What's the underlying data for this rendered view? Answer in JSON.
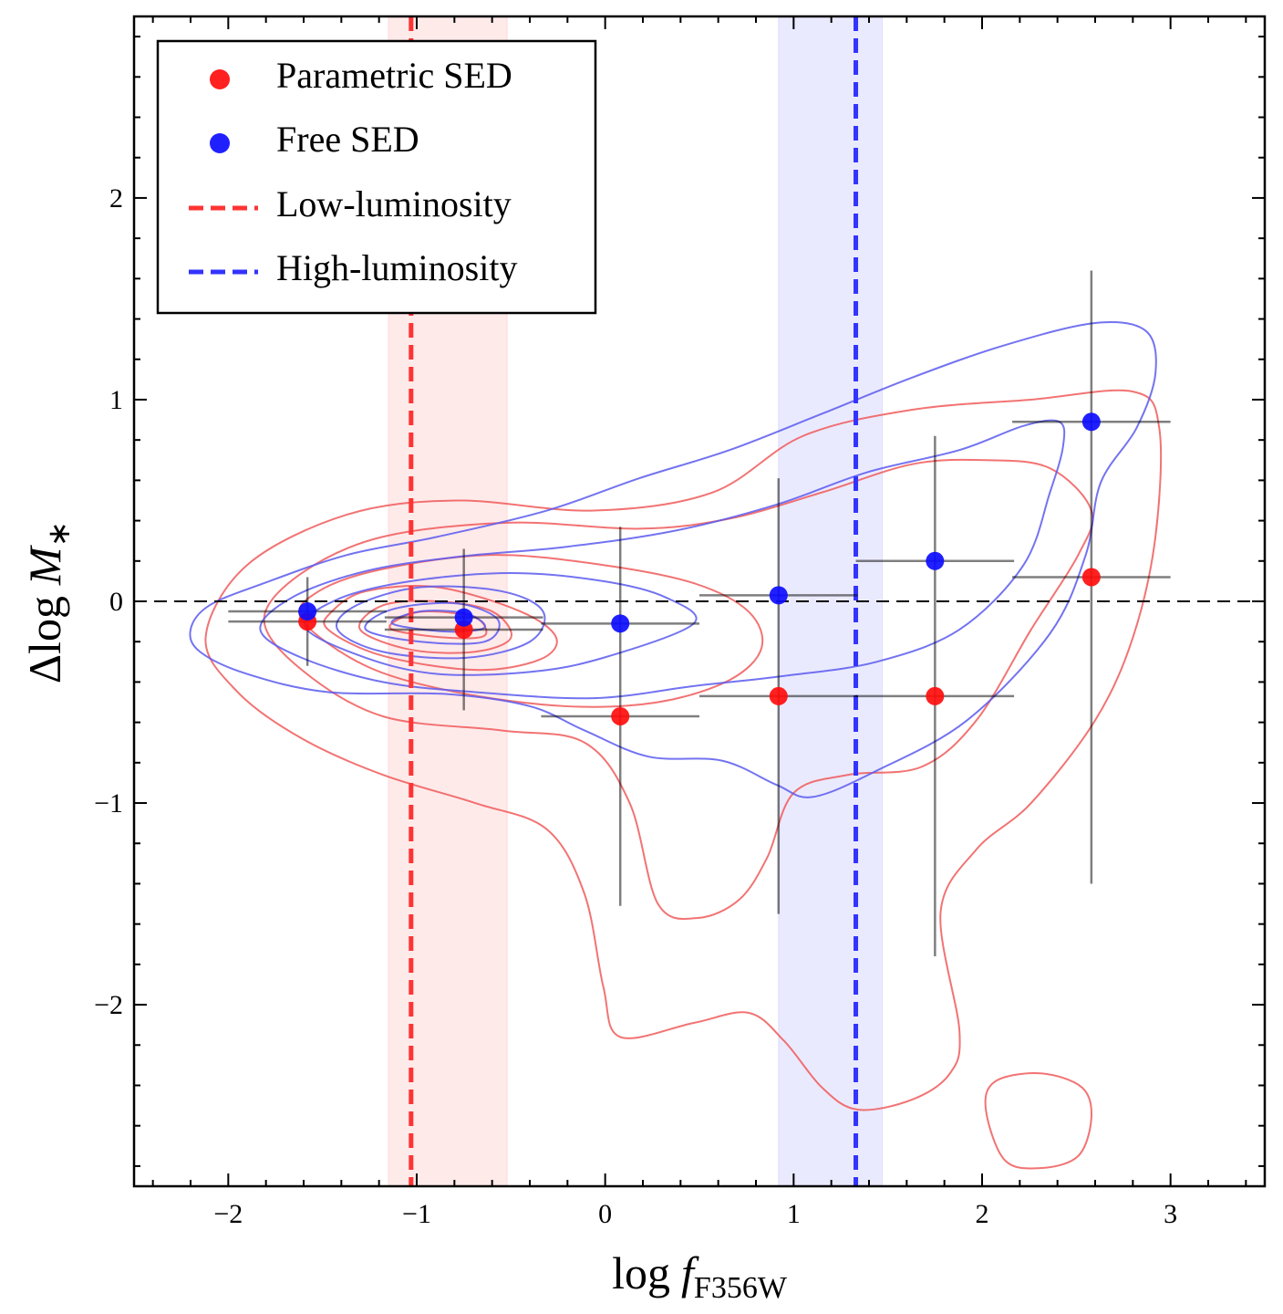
{
  "chart_data": {
    "type": "scatter",
    "xlabel": {
      "text": "log",
      "var": "f",
      "sub": "F356W"
    },
    "ylabel": {
      "text": "Δlog",
      "var": "M",
      "sub": "∗"
    },
    "xlim": [
      -2.5,
      3.5
    ],
    "ylim": [
      -2.9,
      2.9
    ],
    "xticks": [
      {
        "value": -2,
        "label": "−2"
      },
      {
        "value": -1,
        "label": "−1"
      },
      0,
      1,
      2,
      3
    ],
    "yticks": [
      {
        "value": -2,
        "label": "−2"
      },
      {
        "value": -1,
        "label": "−1"
      },
      0,
      1,
      2
    ],
    "xticks_minor": [
      -2.4,
      -2.2,
      -1.8,
      -1.6,
      -1.4,
      -1.2,
      -0.8,
      -0.6,
      -0.4,
      -0.2,
      0.2,
      0.4,
      0.6,
      0.8,
      1.2,
      1.4,
      1.6,
      1.8,
      2.2,
      2.4,
      2.6,
      2.8,
      3.2,
      3.4
    ],
    "yticks_minor": [
      -2.8,
      -2.6,
      -2.4,
      -2.2,
      -1.8,
      -1.6,
      -1.4,
      -1.2,
      -0.8,
      -0.6,
      -0.4,
      -0.2,
      0.2,
      0.4,
      0.6,
      0.8,
      1.2,
      1.4,
      1.6,
      1.8,
      2.2,
      2.4,
      2.6,
      2.8
    ],
    "hline": 0,
    "legend": "upper left",
    "series": [
      {
        "name": "Parametric SED",
        "color": "#ff0d0d",
        "x": [
          -1.58,
          -0.75,
          0.08,
          0.92,
          1.75,
          2.58
        ],
        "values": [
          -0.1,
          -0.14,
          -0.57,
          -0.47,
          -0.47,
          0.12
        ],
        "xerr": [
          0.42,
          0.42,
          0.42,
          0.42,
          0.42,
          0.42
        ],
        "yerr": [
          0.22,
          0.4,
          0.94,
          1.08,
          1.29,
          1.52
        ]
      },
      {
        "name": "Free SED",
        "color": "#0d0dff",
        "x": [
          -1.58,
          -0.75,
          0.08,
          0.92,
          1.75,
          2.58
        ],
        "values": [
          -0.05,
          -0.08,
          -0.11,
          0.03,
          0.2,
          0.89
        ],
        "xerr": [
          0.42,
          0.42,
          0.42,
          0.42,
          0.42,
          0.42
        ]
      }
    ],
    "vlines": [
      {
        "name": "Low-luminosity",
        "color": "#ff3333",
        "x": -1.03,
        "band": [
          -1.15,
          -0.52
        ]
      },
      {
        "name": "High-luminosity",
        "color": "#3333ff",
        "x": 1.33,
        "band": [
          0.92,
          1.47
        ]
      }
    ],
    "contours": [
      {
        "color": "#f05a5a",
        "x": [
          -2.12,
          -1.95,
          -1.61,
          -1.18,
          -0.69,
          -0.31,
          -0.11,
          -0.01,
          0.08,
          0.47,
          0.76,
          0.95,
          1.15,
          1.34,
          1.63,
          1.83,
          1.88,
          1.78,
          1.97,
          2.26,
          2.6,
          2.8,
          2.92,
          2.94,
          2.8,
          2.26,
          1.63,
          1.05,
          0.57,
          -0.06,
          -0.79,
          -1.37,
          -1.9
        ],
        "y": [
          -0.18,
          -0.45,
          -0.68,
          -0.86,
          -1.0,
          -1.13,
          -1.45,
          -1.91,
          -2.16,
          -2.09,
          -2.04,
          -2.18,
          -2.41,
          -2.52,
          -2.47,
          -2.34,
          -2.13,
          -1.54,
          -1.23,
          -1.0,
          -0.59,
          -0.18,
          0.32,
          0.86,
          1.04,
          1.0,
          0.95,
          0.82,
          0.54,
          0.45,
          0.5,
          0.43,
          0.18
        ]
      },
      {
        "color": "#f05a5a",
        "x": [
          -1.81,
          -1.61,
          -1.18,
          -0.55,
          -0.11,
          0.13,
          0.28,
          0.49,
          0.71,
          0.86,
          1.0,
          1.29,
          1.68,
          1.97,
          2.26,
          2.51,
          2.58,
          2.36,
          2.02,
          1.63,
          1.15,
          0.66,
          0.18,
          -0.5,
          -1.18,
          -1.61
        ],
        "y": [
          -0.09,
          -0.34,
          -0.57,
          -0.64,
          -0.7,
          -1.0,
          -1.5,
          -1.57,
          -1.48,
          -1.27,
          -0.95,
          -0.86,
          -0.82,
          -0.59,
          -0.14,
          0.23,
          0.45,
          0.66,
          0.7,
          0.68,
          0.54,
          0.41,
          0.36,
          0.39,
          0.32,
          0.14
        ]
      },
      {
        "color": "#f05a5a",
        "x": [
          -1.61,
          -1.27,
          -0.79,
          -0.21,
          0.28,
          0.66,
          0.83,
          0.76,
          0.47,
          -0.01,
          -0.6,
          -1.18,
          -1.52
        ],
        "y": [
          -0.09,
          -0.32,
          -0.45,
          -0.52,
          -0.5,
          -0.39,
          -0.23,
          -0.05,
          0.09,
          0.18,
          0.23,
          0.16,
          0.05
        ]
      },
      {
        "color": "#f05a5a",
        "x": [
          -1.47,
          -1.18,
          -0.69,
          -0.35,
          -0.26,
          -0.45,
          -0.89,
          -1.27,
          -1.45
        ],
        "y": [
          -0.14,
          -0.27,
          -0.34,
          -0.29,
          -0.18,
          -0.05,
          0.07,
          0.05,
          -0.05
        ]
      },
      {
        "color": "#f05a5a",
        "x": [
          -1.3,
          -1.03,
          -0.69,
          -0.5,
          -0.6,
          -0.89,
          -1.18
        ],
        "y": [
          -0.14,
          -0.24,
          -0.25,
          -0.18,
          -0.05,
          0.0,
          -0.02
        ]
      },
      {
        "color": "#f05a5a",
        "x": [
          -1.13,
          -0.84,
          -0.64,
          -0.69,
          -0.94,
          -1.08
        ],
        "y": [
          -0.14,
          -0.18,
          -0.17,
          -0.08,
          -0.05,
          -0.08
        ]
      },
      {
        "color": "#f05a5a",
        "x": [
          2.02,
          2.12,
          2.31,
          2.51,
          2.58,
          2.53,
          2.31,
          2.07
        ],
        "y": [
          -2.52,
          -2.77,
          -2.81,
          -2.75,
          -2.56,
          -2.41,
          -2.34,
          -2.38
        ]
      },
      {
        "color": "#5a5aee",
        "x": [
          -2.2,
          -2.15,
          -1.9,
          -1.47,
          -0.84,
          -0.4,
          -0.11,
          0.23,
          0.62,
          0.91,
          1.1,
          1.44,
          1.92,
          2.36,
          2.55,
          2.63,
          2.82,
          2.92,
          2.87,
          2.6,
          2.12,
          1.63,
          1.15,
          0.66,
          0.18,
          -0.31,
          -0.89,
          -1.37,
          -1.81,
          -2.1
        ],
        "y": [
          -0.14,
          -0.25,
          -0.36,
          -0.45,
          -0.46,
          -0.52,
          -0.64,
          -0.77,
          -0.79,
          -0.91,
          -0.97,
          -0.84,
          -0.59,
          -0.16,
          0.23,
          0.59,
          0.86,
          1.13,
          1.34,
          1.38,
          1.27,
          1.11,
          0.93,
          0.75,
          0.61,
          0.45,
          0.32,
          0.23,
          0.09,
          -0.02
        ]
      },
      {
        "color": "#5a5aee",
        "x": [
          -1.83,
          -1.61,
          -1.18,
          -0.69,
          -0.06,
          0.47,
          0.95,
          1.44,
          1.88,
          2.22,
          2.36,
          2.43,
          2.41,
          2.22,
          1.88,
          1.39,
          0.91,
          0.37,
          -0.21,
          -0.79,
          -1.27,
          -1.66
        ],
        "y": [
          -0.14,
          -0.28,
          -0.4,
          -0.45,
          -0.48,
          -0.42,
          -0.37,
          -0.3,
          -0.14,
          0.18,
          0.54,
          0.77,
          0.89,
          0.87,
          0.75,
          0.64,
          0.48,
          0.35,
          0.27,
          0.22,
          0.15,
          0.02
        ]
      },
      {
        "color": "#5a5aee",
        "x": [
          -1.59,
          -1.27,
          -0.89,
          -0.4,
          -0.01,
          0.47,
          0.32,
          -0.01,
          -0.5,
          -1.03,
          -1.42
        ],
        "y": [
          -0.13,
          -0.28,
          -0.36,
          -0.35,
          -0.28,
          -0.11,
          0.02,
          0.1,
          0.14,
          0.1,
          0.01
        ]
      },
      {
        "color": "#5a5aee",
        "x": [
          -1.42,
          -1.18,
          -0.74,
          -0.4,
          -0.33,
          -0.55,
          -0.98,
          -1.32
        ],
        "y": [
          -0.14,
          -0.25,
          -0.28,
          -0.2,
          -0.05,
          0.05,
          0.07,
          -0.02
        ]
      },
      {
        "color": "#5a5aee",
        "x": [
          -1.27,
          -0.98,
          -0.64,
          -0.57,
          -0.79,
          -1.13
        ],
        "y": [
          -0.14,
          -0.2,
          -0.2,
          -0.09,
          -0.01,
          -0.04
        ]
      },
      {
        "color": "#5a5aee",
        "x": [
          -1.13,
          -0.84,
          -0.64,
          -0.74,
          -0.98
        ],
        "y": [
          -0.11,
          -0.15,
          -0.13,
          -0.06,
          -0.05
        ]
      }
    ]
  }
}
